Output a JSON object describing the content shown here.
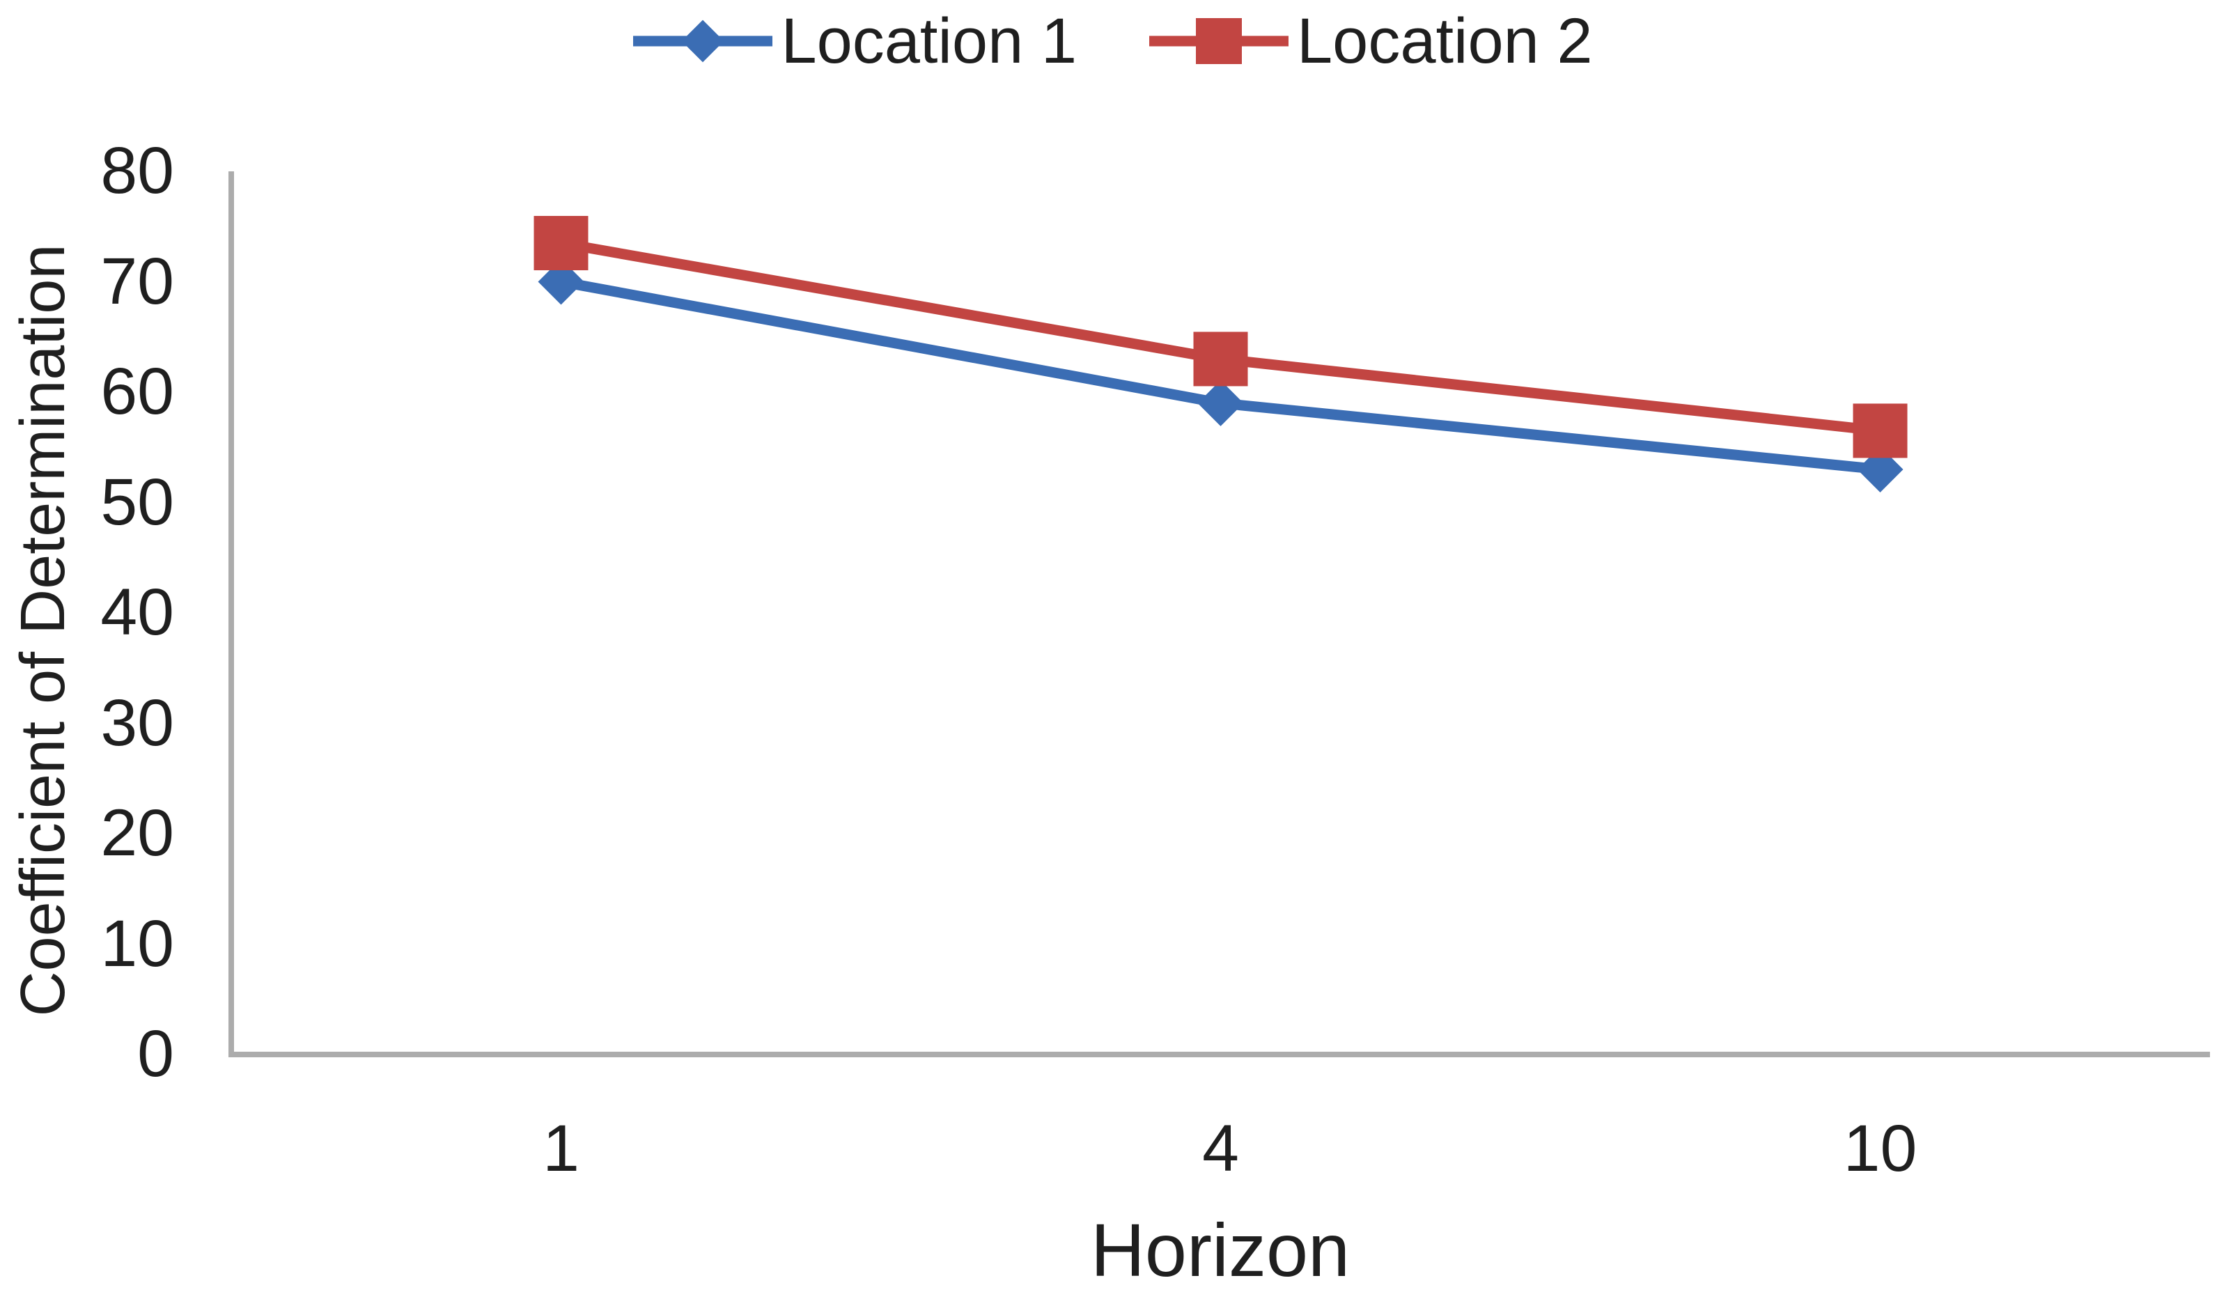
{
  "chart_data": {
    "type": "line",
    "categories": [
      "1",
      "4",
      "10"
    ],
    "series": [
      {
        "name": "Location 1",
        "color": "#3b6db4",
        "marker": "diamond",
        "values": [
          70,
          59,
          53
        ]
      },
      {
        "name": "Location 2",
        "color": "#c24542",
        "marker": "square",
        "values": [
          73.5,
          63,
          56.5
        ]
      }
    ],
    "title": "",
    "xlabel": "Horizon",
    "ylabel": "Coefficient of Determination",
    "ylim": [
      0,
      80
    ],
    "yticks": [
      0,
      10,
      20,
      30,
      40,
      50,
      60,
      70,
      80
    ],
    "grid": false,
    "legend_position": "top"
  },
  "colors": {
    "axis": "#acacac",
    "text": "#1f1f1f"
  }
}
